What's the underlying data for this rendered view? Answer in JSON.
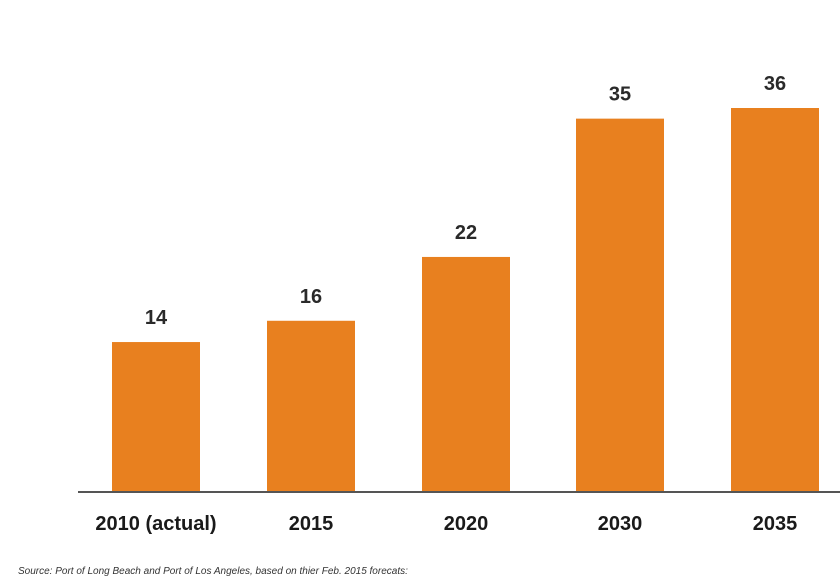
{
  "chart_data": {
    "type": "bar",
    "categories": [
      "2010 (actual)",
      "2015",
      "2020",
      "2030",
      "2035"
    ],
    "values": [
      14,
      16,
      22,
      35,
      36
    ],
    "title": "",
    "xlabel": "",
    "ylabel": "",
    "ylim": [
      0,
      40
    ],
    "grid": false,
    "data_labels": true,
    "colors": {
      "bar": "#E8801F",
      "axis": "#555555"
    }
  },
  "source": {
    "text": "Source: Port of Long Beach and Port of Los Angeles, based on thier Feb. 2015 forecats:"
  }
}
